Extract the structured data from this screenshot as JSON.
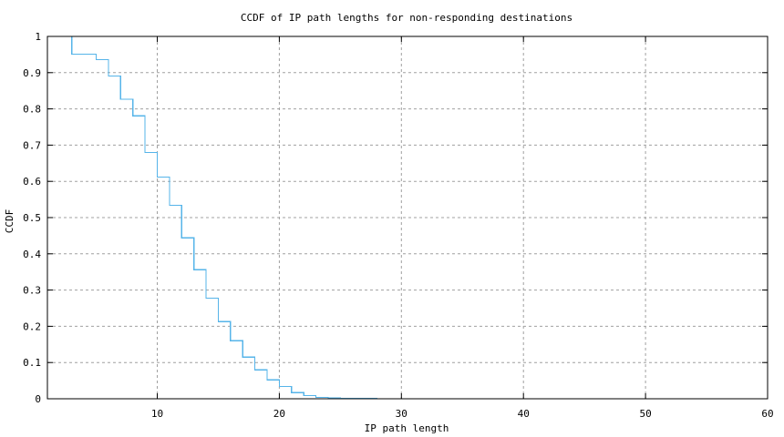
{
  "chart_data": {
    "type": "line",
    "style": "step",
    "title": "CCDF of IP path lengths for non-responding destinations",
    "xlabel": "IP path length",
    "ylabel": "CCDF",
    "xlim": [
      1,
      60
    ],
    "ylim": [
      0,
      1
    ],
    "xticks": [
      10,
      20,
      30,
      40,
      50,
      60
    ],
    "yticks": [
      0,
      0.1,
      0.2,
      0.3,
      0.4,
      0.5,
      0.6,
      0.7,
      0.8,
      0.9,
      1
    ],
    "ytick_labels": [
      "0",
      "0.1",
      "0.2",
      "0.3",
      "0.4",
      "0.5",
      "0.6",
      "0.7",
      "0.8",
      "0.9",
      "1"
    ],
    "grid": true,
    "legend": null,
    "series": [
      {
        "name": "CCDF",
        "color": "#56b4e9",
        "x": [
          3,
          5,
          6,
          7,
          8,
          9,
          10,
          11,
          12,
          13,
          14,
          15,
          16,
          17,
          18,
          19,
          20,
          21,
          22,
          23,
          24,
          25,
          26,
          27,
          28
        ],
        "y": [
          0.951,
          0.936,
          0.891,
          0.827,
          0.781,
          0.68,
          0.612,
          0.534,
          0.444,
          0.356,
          0.278,
          0.213,
          0.16,
          0.115,
          0.08,
          0.052,
          0.034,
          0.017,
          0.009,
          0.004,
          0.002,
          0.001,
          0.001,
          0.0005,
          0.0
        ]
      }
    ]
  }
}
